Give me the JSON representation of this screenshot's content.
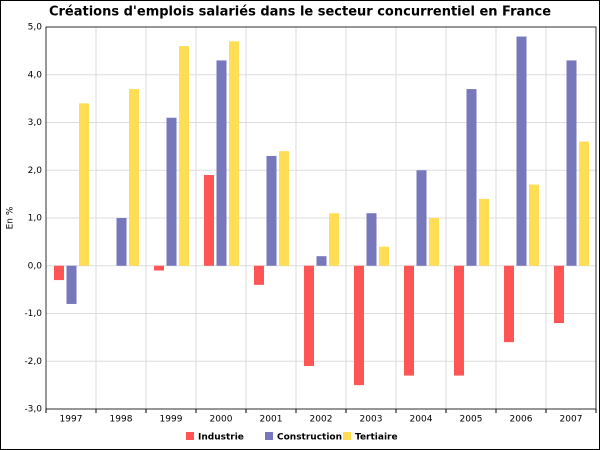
{
  "chart_data": {
    "type": "bar",
    "title": "Créations d'emplois salariés dans le secteur concurrentiel en France",
    "y_label": "En %",
    "categories": [
      "1997",
      "1998",
      "1999",
      "2000",
      "2001",
      "2002",
      "2003",
      "2004",
      "2005",
      "2006",
      "2007"
    ],
    "series": [
      {
        "name": "Industrie",
        "color": "#ff5555",
        "values": [
          -0.3,
          0,
          -0.1,
          1.9,
          -0.4,
          -2.1,
          -2.5,
          -2.3,
          -2.3,
          -1.6,
          -1.2
        ]
      },
      {
        "name": "Construction",
        "color": "#7777bb",
        "values": [
          -0.8,
          1.0,
          3.1,
          4.3,
          2.3,
          0.2,
          1.1,
          2.0,
          3.7,
          4.8,
          4.3
        ]
      },
      {
        "name": "Tertiaire",
        "color": "#ffdd55",
        "values": [
          3.4,
          3.7,
          4.6,
          4.7,
          2.4,
          1.1,
          0.4,
          1.0,
          1.4,
          1.7,
          2.6
        ]
      }
    ],
    "ylim": [
      -3,
      5
    ],
    "yticks": [
      {
        "value": -3,
        "label": "-3,0"
      },
      {
        "value": -2,
        "label": "-2,0"
      },
      {
        "value": -1,
        "label": "-1,0"
      },
      {
        "value": 0,
        "label": "0,0"
      },
      {
        "value": 1,
        "label": "1,0"
      },
      {
        "value": 2,
        "label": "2,0"
      },
      {
        "value": 3,
        "label": "3,0"
      },
      {
        "value": 4,
        "label": "4,0"
      },
      {
        "value": 5,
        "label": "5,0"
      }
    ],
    "grid": true,
    "legend": "bottom"
  }
}
